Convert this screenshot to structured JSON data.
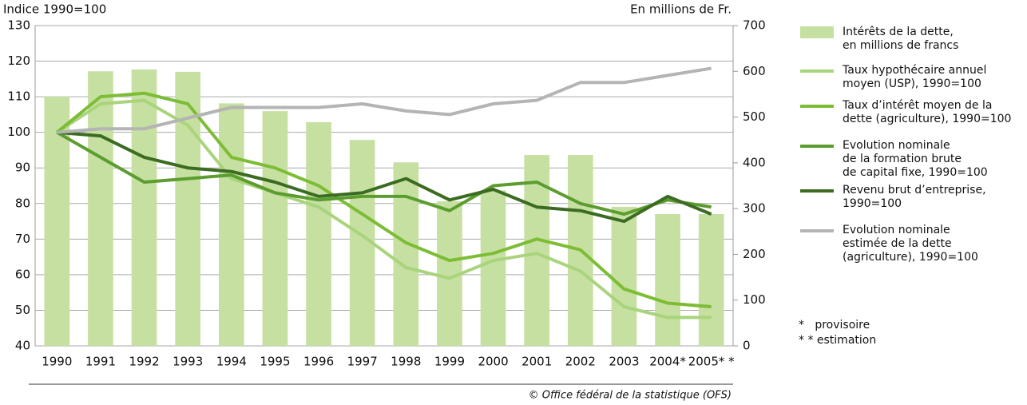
{
  "chart_data": {
    "type": "combo",
    "ylabel": "Indice 1990=100",
    "y2label": "En millions de Fr.",
    "categories": [
      "1990",
      "1991",
      "1992",
      "1993",
      "1994",
      "1995",
      "1996",
      "1997",
      "1998",
      "1999",
      "2000",
      "2001",
      "2002",
      "2003",
      "2004*",
      "2005* *"
    ],
    "ylim": [
      40,
      130
    ],
    "yticks": [
      40,
      50,
      60,
      70,
      80,
      90,
      100,
      110,
      120,
      130
    ],
    "y2lim": [
      0,
      700
    ],
    "y2ticks": [
      0,
      100,
      200,
      300,
      400,
      500,
      600,
      700
    ],
    "grid": true,
    "series": [
      {
        "name": "Intérêts de la dette,\nen millions de francs",
        "type": "bar",
        "axis": "y2",
        "color": "#c6e0a2",
        "values": [
          545,
          600,
          604,
          599,
          530,
          513,
          489,
          450,
          401,
          316,
          340,
          417,
          417,
          304,
          288,
          288
        ]
      },
      {
        "name": "Taux hypothécaire annuel\nmoyen (USP), 1990=100",
        "type": "line",
        "color": "#a9d47c",
        "values": [
          100,
          108,
          109,
          102,
          87,
          83,
          79,
          71,
          62,
          59,
          64,
          66,
          61,
          51,
          48,
          48
        ]
      },
      {
        "name": "Taux d’intérêt moyen de la\ndette (agriculture), 1990=100",
        "type": "line",
        "color": "#7dbd36",
        "values": [
          100,
          110,
          111,
          108,
          93,
          90,
          85,
          77,
          69,
          64,
          66,
          70,
          67,
          56,
          52,
          51
        ]
      },
      {
        "name": "Evolution nominale\nde la formation brute\nde capital fixe, 1990=100",
        "type": "line",
        "color": "#5c9d30",
        "values": [
          100,
          93,
          86,
          87,
          88,
          83,
          81,
          82,
          82,
          78,
          85,
          86,
          80,
          77,
          81,
          79
        ]
      },
      {
        "name": "Revenu brut d’entreprise,\n1990=100",
        "type": "line",
        "color": "#3b6c22",
        "values": [
          100,
          99,
          93,
          90,
          89,
          86,
          82,
          83,
          87,
          81,
          84,
          79,
          78,
          75,
          82,
          77
        ]
      },
      {
        "name": "Evolution nominale\nestimée de la dette\n(agriculture), 1990=100",
        "type": "line",
        "color": "#b4b4b4",
        "values": [
          100,
          101,
          101,
          104,
          107,
          107,
          107,
          108,
          106,
          105,
          108,
          109,
          114,
          114,
          116,
          118
        ]
      }
    ],
    "notes": [
      "*   provisoire",
      "* * estimation"
    ],
    "source": "© Office fédéral de la statistique (OFS)"
  }
}
